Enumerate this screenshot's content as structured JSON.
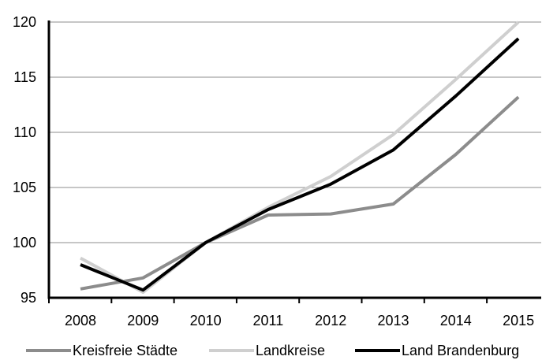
{
  "chart_data": {
    "type": "line",
    "x": [
      "2008",
      "2009",
      "2010",
      "2011",
      "2012",
      "2013",
      "2014",
      "2015"
    ],
    "ylim": [
      95,
      120
    ],
    "yticks": [
      95,
      100,
      105,
      110,
      115,
      120
    ],
    "grid": true,
    "legend_position": "bottom",
    "series": [
      {
        "name": "Kreisfreie Städte",
        "color": "#8c8c8c",
        "values": [
          95.8,
          96.8,
          100.0,
          102.5,
          102.6,
          103.5,
          108.0,
          113.2
        ]
      },
      {
        "name": "Landkreise",
        "color": "#cfcfcf",
        "values": [
          98.6,
          95.5,
          100.0,
          103.2,
          106.0,
          109.8,
          114.8,
          120.0
        ]
      },
      {
        "name": "Land Brandenburg",
        "color": "#000000",
        "values": [
          98.0,
          95.7,
          100.0,
          103.0,
          105.3,
          108.4,
          113.3,
          118.5
        ]
      }
    ]
  }
}
